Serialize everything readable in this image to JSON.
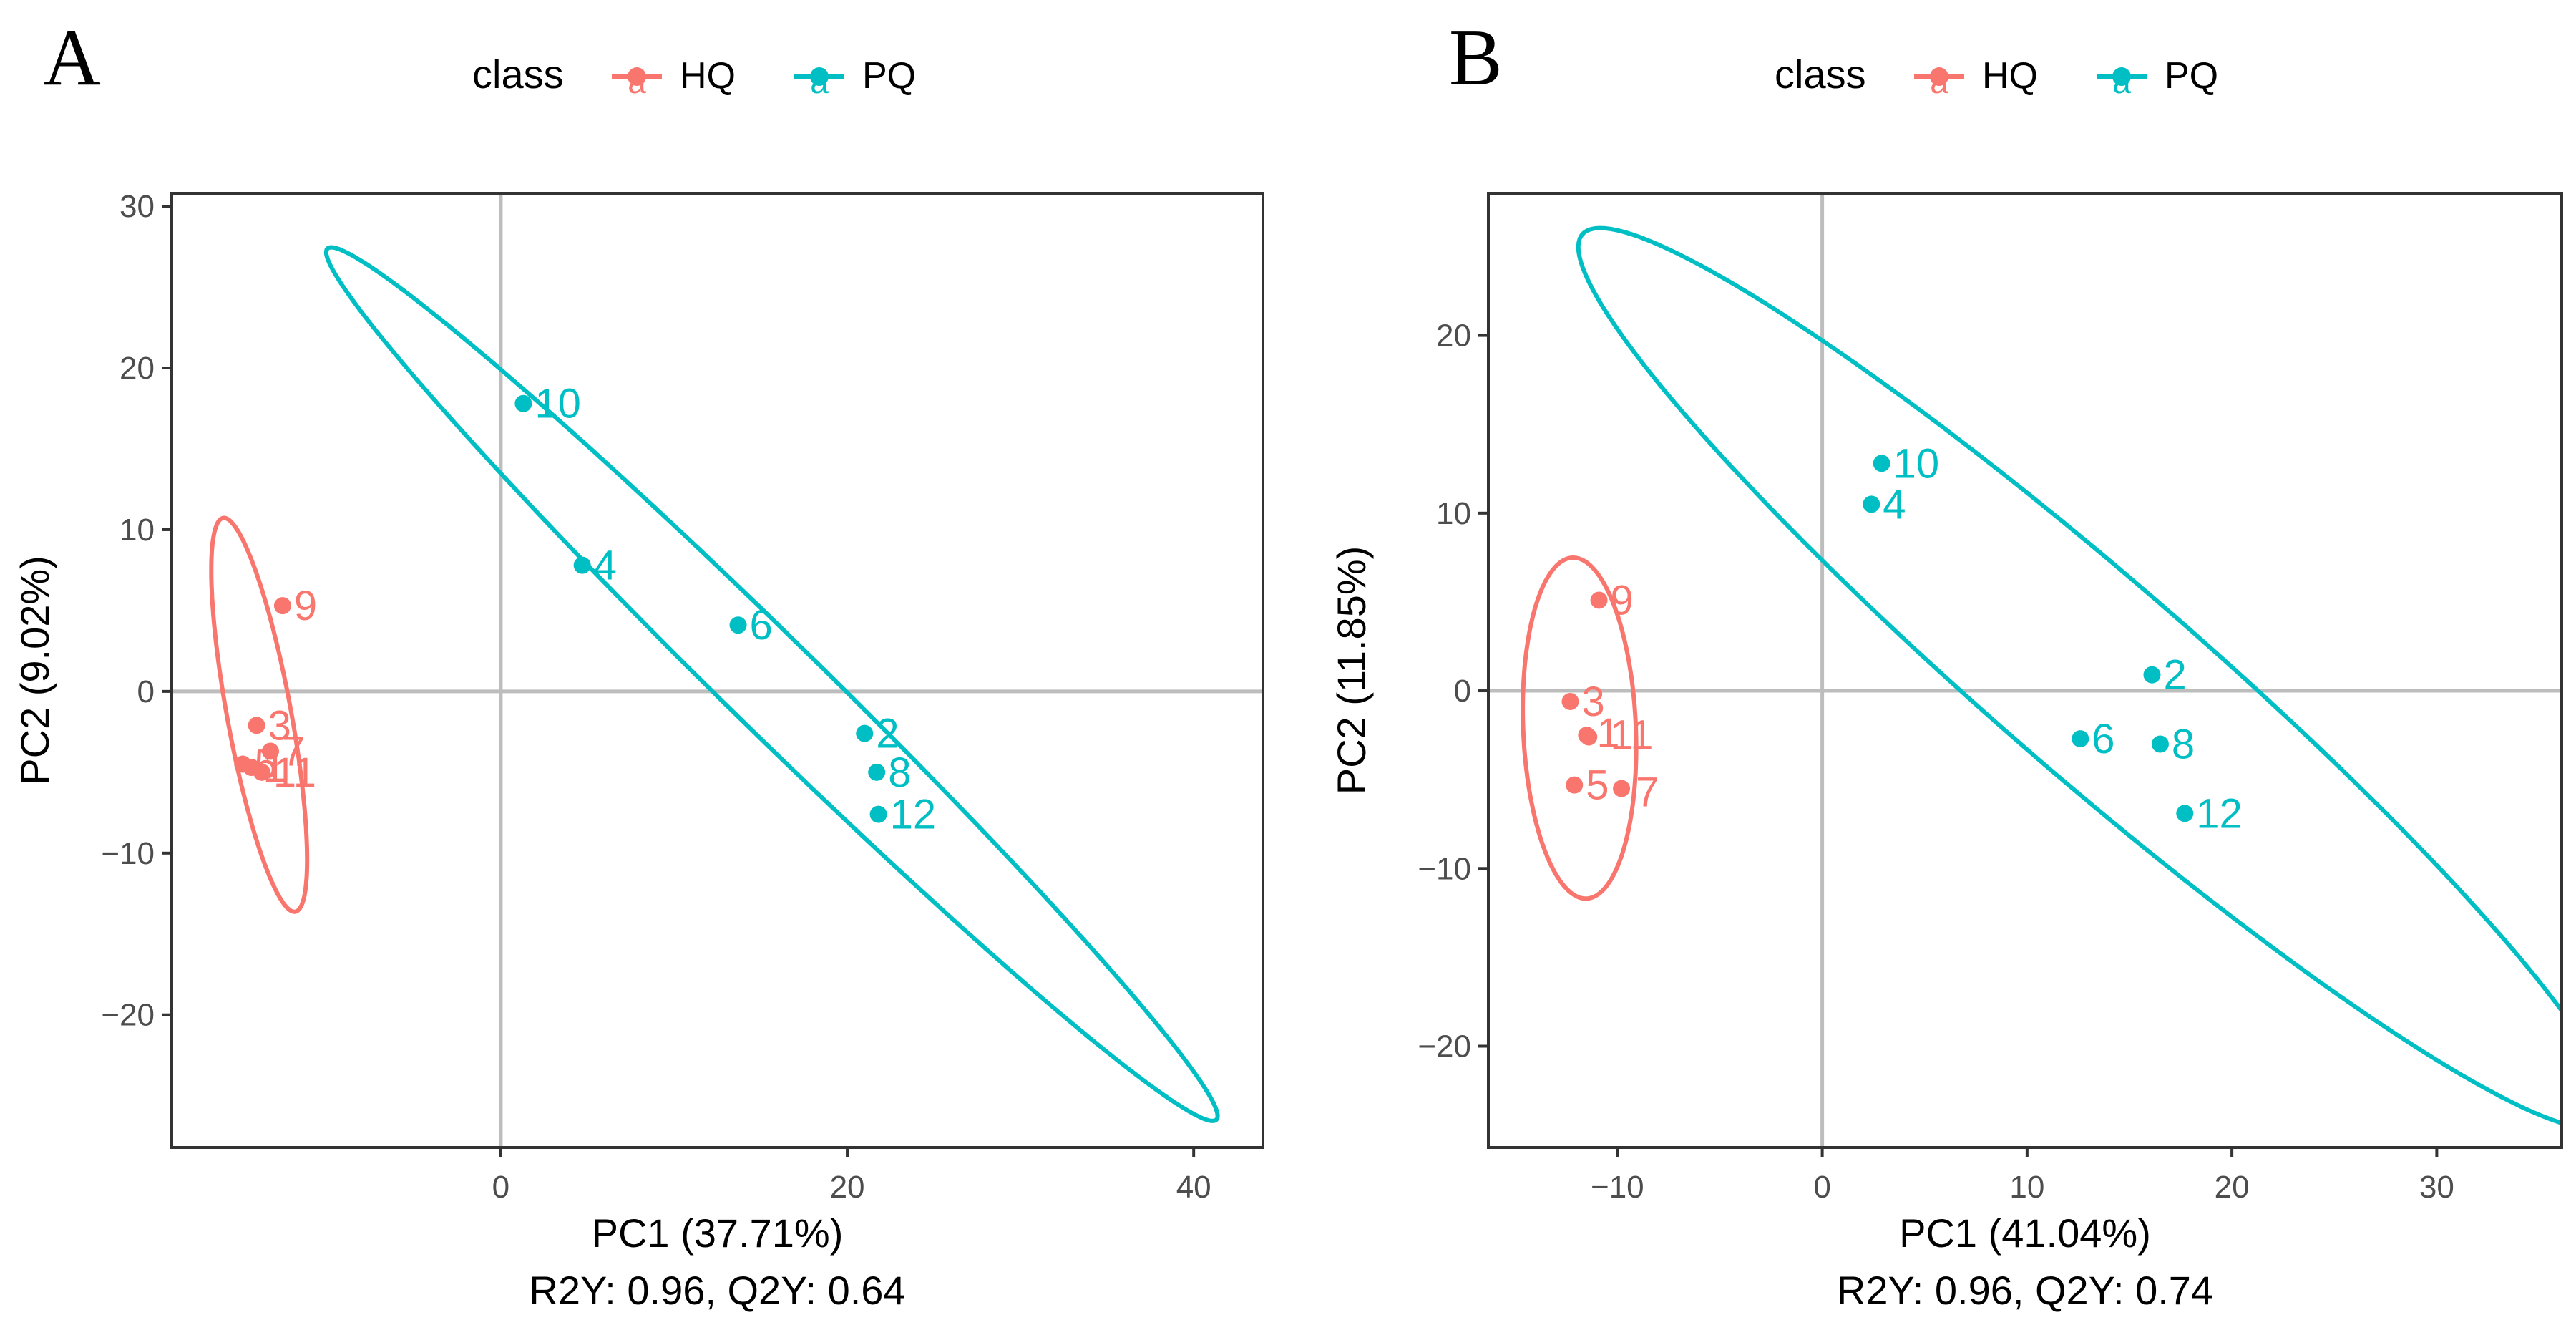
{
  "colors": {
    "HQ": "#F8766D",
    "PQ": "#00BFC4",
    "grid": "#bdbdbd",
    "axis": "#333333",
    "text": "#4d4d4d"
  },
  "legend": {
    "title": "class",
    "key_glyph": "a",
    "entries": [
      {
        "label": "HQ",
        "class": "HQ"
      },
      {
        "label": "PQ",
        "class": "PQ"
      }
    ]
  },
  "chart_data": [
    {
      "panel": "A",
      "type": "scatter",
      "xlabel": "PC1 (37.71%)",
      "subtitle": "R2Y: 0.96, Q2Y: 0.64",
      "ylabel": "PC2 (9.02%)",
      "xlim": [
        -19,
        44
      ],
      "ylim": [
        -28.2,
        30.8
      ],
      "xticks": [
        0,
        20,
        40
      ],
      "yticks": [
        -20,
        -10,
        0,
        10,
        20,
        30
      ],
      "grid": false,
      "reference_lines": {
        "x": 0,
        "y": 0
      },
      "legend_position": "top",
      "points": [
        {
          "label": "9",
          "x": -12.6,
          "y": 5.3,
          "class": "HQ"
        },
        {
          "label": "3",
          "x": -14.1,
          "y": -2.1,
          "class": "HQ"
        },
        {
          "label": "7",
          "x": -13.3,
          "y": -3.7,
          "class": "HQ"
        },
        {
          "label": "5",
          "x": -14.9,
          "y": -4.5,
          "class": "HQ"
        },
        {
          "label": "1",
          "x": -14.4,
          "y": -4.7,
          "class": "HQ"
        },
        {
          "label": "11",
          "x": -13.8,
          "y": -5.0,
          "class": "HQ"
        },
        {
          "label": "10",
          "x": 1.3,
          "y": 17.8,
          "class": "PQ"
        },
        {
          "label": "4",
          "x": 4.7,
          "y": 7.8,
          "class": "PQ"
        },
        {
          "label": "6",
          "x": 13.7,
          "y": 4.1,
          "class": "PQ"
        },
        {
          "label": "2",
          "x": 21.0,
          "y": -2.6,
          "class": "PQ"
        },
        {
          "label": "8",
          "x": 21.7,
          "y": -5.0,
          "class": "PQ"
        },
        {
          "label": "12",
          "x": 21.8,
          "y": -7.6,
          "class": "PQ"
        }
      ],
      "ellipses": [
        {
          "class": "HQ",
          "cx": -13.95,
          "cy": -1.45,
          "rx": 12.35,
          "ry": 1.85,
          "angle_deg": -80.3
        },
        {
          "class": "PQ",
          "cx": 15.65,
          "cy": 0.45,
          "rx": 37.2,
          "ry": 2.8,
          "angle_deg": -46.4
        }
      ]
    },
    {
      "panel": "B",
      "type": "scatter",
      "xlabel": "PC1 (41.04%)",
      "subtitle": "R2Y: 0.96, Q2Y: 0.74",
      "ylabel": "PC2 (11.85%)",
      "xlim": [
        -16.3,
        36.1
      ],
      "ylim": [
        -25.7,
        28.0
      ],
      "xticks": [
        -10,
        0,
        10,
        20,
        30
      ],
      "yticks": [
        -20,
        -10,
        0,
        10,
        20
      ],
      "grid": false,
      "reference_lines": {
        "x": 0,
        "y": 0
      },
      "legend_position": "top",
      "points": [
        {
          "label": "9",
          "x": -10.9,
          "y": 5.1,
          "class": "HQ"
        },
        {
          "label": "3",
          "x": -12.3,
          "y": -0.6,
          "class": "HQ"
        },
        {
          "label": "1",
          "x": -11.5,
          "y": -2.5,
          "class": "HQ"
        },
        {
          "label": "11",
          "x": -11.4,
          "y": -2.6,
          "class": "HQ"
        },
        {
          "label": "5",
          "x": -12.1,
          "y": -5.3,
          "class": "HQ"
        },
        {
          "label": "7",
          "x": -9.8,
          "y": -5.5,
          "class": "HQ"
        },
        {
          "label": "10",
          "x": 2.9,
          "y": 12.8,
          "class": "PQ"
        },
        {
          "label": "4",
          "x": 2.4,
          "y": 10.5,
          "class": "PQ"
        },
        {
          "label": "2",
          "x": 16.1,
          "y": 0.9,
          "class": "PQ"
        },
        {
          "label": "6",
          "x": 12.6,
          "y": -2.7,
          "class": "PQ"
        },
        {
          "label": "8",
          "x": 16.5,
          "y": -3.0,
          "class": "PQ"
        },
        {
          "label": "12",
          "x": 17.7,
          "y": -6.9,
          "class": "PQ"
        }
      ],
      "ellipses": [
        {
          "class": "HQ",
          "cx": -11.85,
          "cy": -2.1,
          "rx": 9.6,
          "ry": 2.75,
          "angle_deg": -88.0
        },
        {
          "class": "PQ",
          "cx": 13.35,
          "cy": 0.7,
          "rx": 35.4,
          "ry": 5.2,
          "angle_deg": -45.1
        }
      ]
    }
  ]
}
